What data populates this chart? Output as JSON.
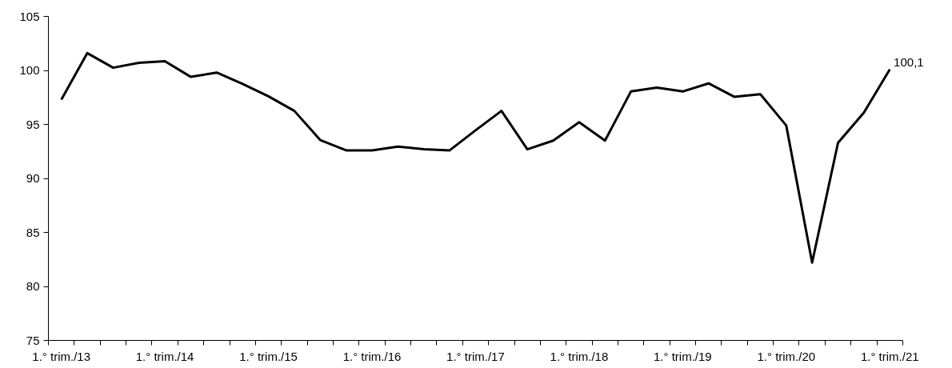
{
  "chart_data": {
    "type": "line",
    "categories": [
      "1.° trim./13",
      null,
      null,
      null,
      "1.° trim./14",
      null,
      null,
      null,
      "1.° trim./15",
      null,
      null,
      null,
      "1.° trim./16",
      null,
      null,
      null,
      "1.° trim./17",
      null,
      null,
      null,
      "1.° trim./18",
      null,
      null,
      null,
      "1.° trim./19",
      null,
      null,
      null,
      "1.° trim./20",
      null,
      null,
      null,
      "1.° trim./21"
    ],
    "series": [
      {
        "color": "#000000",
        "values": [
          97.3,
          101.6,
          100.25,
          100.7,
          100.85,
          99.4,
          99.8,
          98.75,
          97.6,
          96.25,
          93.55,
          92.6,
          92.6,
          92.95,
          92.7,
          92.6,
          94.45,
          96.25,
          92.7,
          93.5,
          95.2,
          93.5,
          98.05,
          98.4,
          98.05,
          98.8,
          97.55,
          97.8,
          94.9,
          82.2,
          93.3,
          96.1,
          100.1
        ],
        "value_labels": [
          null,
          null,
          null,
          null,
          null,
          null,
          null,
          null,
          null,
          null,
          null,
          null,
          null,
          null,
          null,
          null,
          null,
          null,
          null,
          null,
          null,
          null,
          null,
          null,
          null,
          null,
          null,
          null,
          null,
          null,
          null,
          null,
          "100,1"
        ]
      }
    ],
    "ylim": [
      75,
      105
    ],
    "yticks": [
      75,
      80,
      85,
      90,
      95,
      100,
      105
    ],
    "grid": false,
    "marker": "none",
    "line_style": "solid"
  }
}
